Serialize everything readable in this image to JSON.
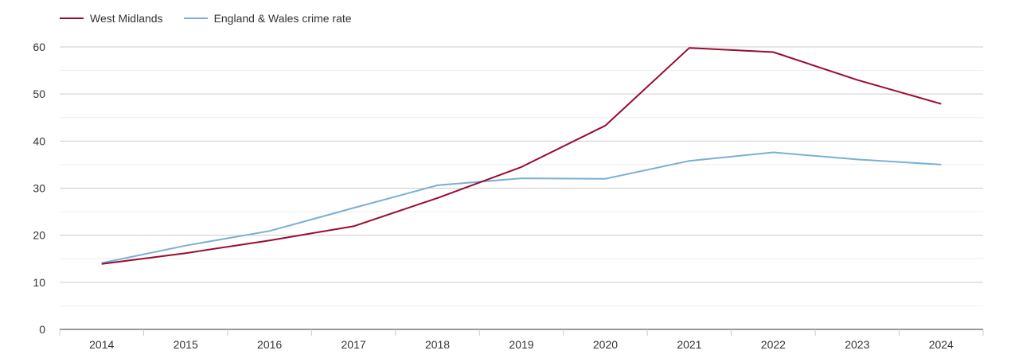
{
  "chart_data": {
    "type": "line",
    "title": "",
    "xlabel": "",
    "ylabel": "",
    "categories": [
      "2014",
      "2015",
      "2016",
      "2017",
      "2018",
      "2019",
      "2020",
      "2021",
      "2022",
      "2023",
      "2024"
    ],
    "ylim": [
      0,
      60
    ],
    "yticks": [
      "0",
      "10",
      "20",
      "30",
      "40",
      "50",
      "60"
    ],
    "grid": true,
    "legend_position": "top-left",
    "series": [
      {
        "name": "West Midlands",
        "color": "#9b0a30",
        "values": [
          13.9,
          16.2,
          18.9,
          21.9,
          27.9,
          34.5,
          43.3,
          59.8,
          58.9,
          53.0,
          47.9
        ]
      },
      {
        "name": "England & Wales crime rate",
        "color": "#7aafd4",
        "values": [
          14.1,
          17.8,
          20.9,
          25.8,
          30.6,
          32.1,
          32.0,
          35.8,
          37.6,
          36.1,
          35.0
        ]
      }
    ]
  }
}
